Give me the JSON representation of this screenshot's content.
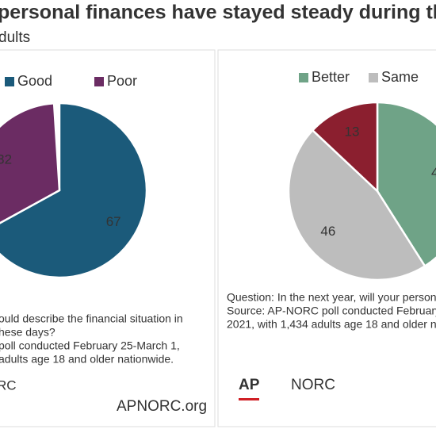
{
  "header": {
    "title": "personal finances have stayed steady during the p",
    "subtitle": "dults"
  },
  "chart_data": [
    {
      "type": "pie",
      "categories": [
        "Good",
        "Poor"
      ],
      "values": [
        67,
        32
      ],
      "colors": [
        "#1b5a7a",
        "#6b2c63"
      ],
      "note": [
        "ould describe the financial situation in",
        "hese days?",
        " poll conducted February 25-March 1,",
        "adults age 18 and older nationwide."
      ],
      "logos": [
        "RC",
        "APNORC.org"
      ]
    },
    {
      "type": "pie",
      "categories": [
        "Better",
        "Same",
        null
      ],
      "values": [
        41,
        46,
        13
      ],
      "colors": [
        "#6fa387",
        "#bdbdbd",
        "#8b1f2f"
      ],
      "note": [
        "Question: In the next year, will your person",
        "Source: AP-NORC poll conducted February",
        "2021, with 1,434 adults age 18 and older n"
      ],
      "logos": [
        "AP",
        "NORC"
      ]
    }
  ]
}
